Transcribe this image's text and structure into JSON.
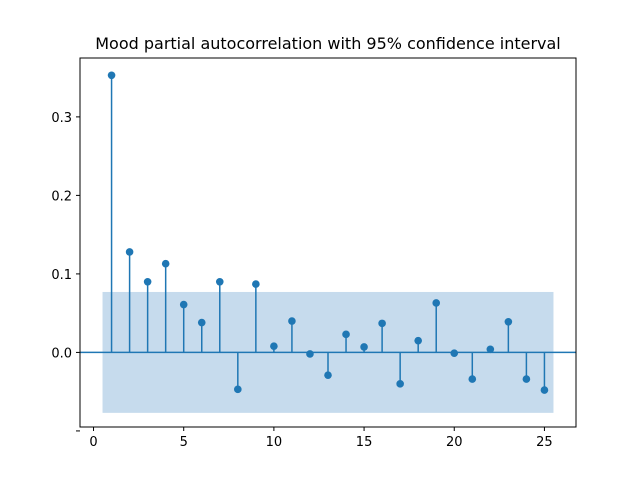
{
  "chart_data": {
    "type": "stem",
    "title": "Mood partial autocorrelation with 95% confidence interval",
    "xlabel": "",
    "ylabel": "",
    "xlim": [
      -0.75,
      26.75
    ],
    "ylim": [
      -0.095,
      0.375
    ],
    "x_ticks": [
      0,
      5,
      10,
      15,
      20,
      25
    ],
    "y_ticks": [
      -0.1,
      0.0,
      0.1,
      0.2,
      0.3
    ],
    "y_tick_labels": [
      "0.0",
      "0.1",
      "0.2",
      "0.3"
    ],
    "x_tick_labels": [
      "0",
      "5",
      "10",
      "15",
      "20",
      "25"
    ],
    "confidence_band": {
      "x_start": 0.5,
      "x_end": 25.5,
      "lower": -0.077,
      "upper": 0.077
    },
    "x": [
      1,
      2,
      3,
      4,
      5,
      6,
      7,
      8,
      9,
      10,
      11,
      12,
      13,
      14,
      15,
      16,
      17,
      18,
      19,
      20,
      21,
      22,
      23,
      24,
      25
    ],
    "values": [
      0.353,
      0.128,
      0.09,
      0.113,
      0.061,
      0.038,
      0.09,
      -0.047,
      0.087,
      0.008,
      0.04,
      -0.002,
      -0.029,
      0.023,
      0.007,
      0.037,
      -0.04,
      0.015,
      0.063,
      -0.001,
      -0.034,
      0.004,
      0.039,
      -0.034,
      -0.048
    ],
    "grid": false,
    "colors": {
      "stem": "#1f77b4",
      "band": "#c6dbed",
      "axis": "#000000"
    }
  }
}
